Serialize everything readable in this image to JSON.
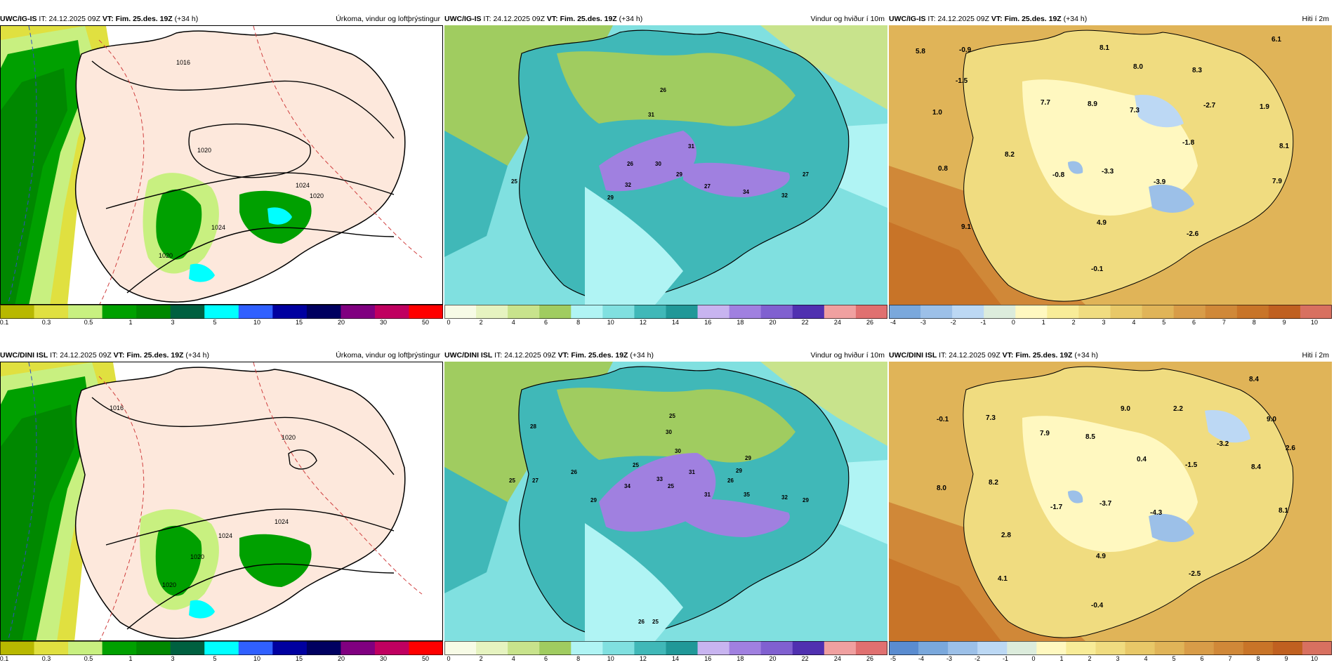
{
  "row1": {
    "precip": {
      "model": "UWC/IG-IS",
      "it_label": "IT:",
      "it_value": "24.12.2025 09Z",
      "vt_label": "VT:",
      "vt_value": "Fim. 25.des. 19Z",
      "lead": "(+34 h)",
      "title": "Úrkoma, vindur og loftþrýstingur",
      "isobar_labels": [
        "1016",
        "1020",
        "1020",
        "1024",
        "1024",
        "1020"
      ],
      "colorbar": {
        "colors": [
          "#b8b800",
          "#e0e040",
          "#c8f080",
          "#00a000",
          "#008800",
          "#006040",
          "#00ffff",
          "#3060ff",
          "#0000a0",
          "#000060",
          "#800080",
          "#c00060",
          "#ff0000"
        ],
        "ticks": [
          "0.1",
          "0.3",
          "0.5",
          "1",
          "3",
          "5",
          "10",
          "15",
          "20",
          "30",
          "50"
        ]
      }
    },
    "wind": {
      "model": "UWC/IG-IS",
      "it_label": "IT:",
      "it_value": "24.12.2025 09Z",
      "vt_label": "VT:",
      "vt_value": "Fim. 25.des. 19Z",
      "lead": "(+34 h)",
      "title": "Vindur og hviður í 10m",
      "gust_labels": [
        "26",
        "31",
        "31",
        "26",
        "30",
        "29",
        "25",
        "32",
        "29",
        "27",
        "34",
        "32",
        "27"
      ],
      "colorbar": {
        "colors": [
          "#f7fbe6",
          "#e6f3c0",
          "#c8e38c",
          "#a0cc60",
          "#b0f4f4",
          "#80e0e0",
          "#40b8b8",
          "#209898",
          "#c8b4f0",
          "#a080e0",
          "#8060d0",
          "#5030b0",
          "#f0a0a0",
          "#e07070"
        ],
        "ticks": [
          "0",
          "2",
          "4",
          "6",
          "8",
          "10",
          "12",
          "14",
          "16",
          "18",
          "20",
          "22",
          "24",
          "26"
        ]
      }
    },
    "temp": {
      "model": "UWC/IG-IS",
      "it_label": "IT:",
      "it_value": "24.12.2025 09Z",
      "vt_label": "VT:",
      "vt_value": "Fim. 25.des. 19Z",
      "lead": "(+34 h)",
      "title": "Hiti í 2m",
      "temp_labels": [
        "5.8",
        "-0.9",
        "8.1",
        "6.1",
        "-1.5",
        "8.0",
        "8.3",
        "7.7",
        "8.9",
        "7.3",
        "-2.7",
        "1.9",
        "1.0",
        "-1.8",
        "8.1",
        "8.2",
        "0.8",
        "-0.8",
        "-3.3",
        "-3.9",
        "7.9",
        "4.9",
        "9.1",
        "-2.6",
        "-0.1"
      ],
      "colorbar": {
        "colors": [
          "#7aa8dc",
          "#9cc0e8",
          "#bcd8f4",
          "#dcecdc",
          "#fff8c0",
          "#f8ec98",
          "#f0dc80",
          "#e8c868",
          "#e0b458",
          "#d89c48",
          "#d08838",
          "#c87428",
          "#c06020",
          "#d87060"
        ],
        "ticks": [
          "-4",
          "-3",
          "-2",
          "-1",
          "0",
          "1",
          "2",
          "3",
          "4",
          "5",
          "6",
          "7",
          "8",
          "9",
          "10"
        ]
      }
    }
  },
  "row2": {
    "precip": {
      "model": "UWC/DINI ISL",
      "it_label": "IT:",
      "it_value": "24.12.2025 09Z",
      "vt_label": "VT:",
      "vt_value": "Fim. 25.des. 19Z",
      "lead": "(+34 h)",
      "title": "Úrkoma, vindur og loftþrýstingur",
      "isobar_labels": [
        "1016",
        "1020",
        "1024",
        "1024",
        "1020",
        "1020"
      ],
      "colorbar": {
        "colors": [
          "#b8b800",
          "#e0e040",
          "#c8f080",
          "#00a000",
          "#008800",
          "#006040",
          "#00ffff",
          "#3060ff",
          "#0000a0",
          "#000060",
          "#800080",
          "#c00060",
          "#ff0000"
        ],
        "ticks": [
          "0.1",
          "0.3",
          "0.5",
          "1",
          "3",
          "5",
          "10",
          "15",
          "20",
          "30",
          "50"
        ]
      }
    },
    "wind": {
      "model": "UWC/DINI ISL",
      "it_label": "IT:",
      "it_value": "24.12.2025 09Z",
      "vt_label": "VT:",
      "vt_value": "Fim. 25.des. 19Z",
      "lead": "(+34 h)",
      "title": "Vindur og hviður í 10m",
      "gust_labels": [
        "28",
        "25",
        "26",
        "25",
        "27",
        "30",
        "30",
        "29",
        "25",
        "31",
        "26",
        "29",
        "33",
        "34",
        "25",
        "29",
        "31",
        "35",
        "32",
        "29",
        "26",
        "25"
      ],
      "colorbar": {
        "colors": [
          "#f7fbe6",
          "#e6f3c0",
          "#c8e38c",
          "#a0cc60",
          "#b0f4f4",
          "#80e0e0",
          "#40b8b8",
          "#209898",
          "#c8b4f0",
          "#a080e0",
          "#8060d0",
          "#5030b0",
          "#f0a0a0",
          "#e07070"
        ],
        "ticks": [
          "0",
          "2",
          "4",
          "6",
          "8",
          "10",
          "12",
          "14",
          "16",
          "18",
          "20",
          "22",
          "24",
          "26"
        ]
      }
    },
    "temp": {
      "model": "UWC/DINI ISL",
      "it_label": "IT:",
      "it_value": "24.12.2025 09Z",
      "vt_label": "VT:",
      "vt_value": "Fim. 25.des. 19Z",
      "lead": "(+34 h)",
      "title": "Hiti í 2m",
      "temp_labels": [
        "8.4",
        "-0.1",
        "7.3",
        "9.0",
        "2.2",
        "9.0",
        "7.9",
        "8.5",
        "-3.2",
        "2.6",
        "0.4",
        "-1.5",
        "8.4",
        "8.0",
        "8.2",
        "-1.7",
        "-3.7",
        "-4.3",
        "8.1",
        "2.8",
        "4.9",
        "-2.5",
        "4.1",
        "-0.4"
      ],
      "colorbar": {
        "colors": [
          "#5a8cd0",
          "#7aa8dc",
          "#9cc0e8",
          "#bcd8f4",
          "#dcecdc",
          "#fff8c0",
          "#f8ec98",
          "#f0dc80",
          "#e8c868",
          "#e0b458",
          "#d89c48",
          "#d08838",
          "#c87428",
          "#c06020",
          "#d87060"
        ],
        "ticks": [
          "-5",
          "-4",
          "-3",
          "-2",
          "-1",
          "0",
          "1",
          "2",
          "3",
          "4",
          "5",
          "6",
          "7",
          "8",
          "9",
          "10"
        ]
      }
    }
  }
}
